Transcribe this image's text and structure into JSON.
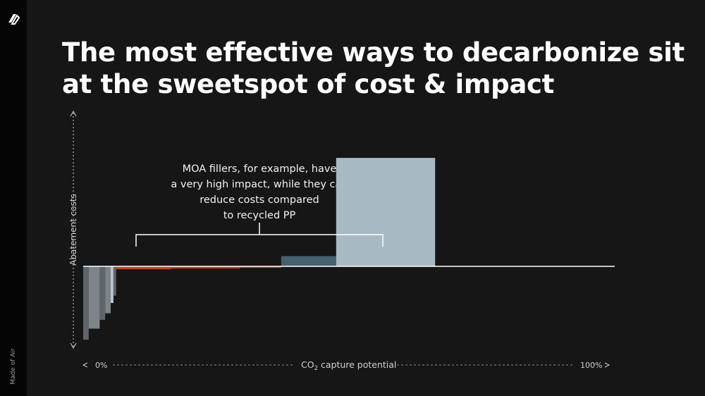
{
  "brand": {
    "name": "Made of Air"
  },
  "slide": {
    "title_lines": [
      "The most effective ways to decarbonize sit",
      "at the sweetspot of cost & impact"
    ],
    "callout_lines": [
      "MOA fillers, for example, have",
      "a very high impact, while they can",
      "reduce costs compared",
      "to recycled PP"
    ]
  },
  "colors": {
    "background": "#161616",
    "sidebar": "#050505",
    "gray_dark": "#5f6569",
    "gray_mid": "#7d8589",
    "gray_light": "#b9c6cd",
    "orange": "#c0401e",
    "steel_blue": "#45606e",
    "pale_blue": "#a7bac4"
  },
  "chart_data": {
    "type": "bar",
    "subtype": "marginal-abatement-cost-curve",
    "title": "",
    "xlabel": "CO2 capture potential",
    "xlabel_main": "CO",
    "xlabel_sub": "2",
    "xlabel_rest": " capture potential",
    "ylabel": "Abatement costs",
    "x_tick_left": "0%",
    "x_tick_right": "100%",
    "xlim": [
      0,
      100
    ],
    "ylim": [
      -100,
      150
    ],
    "grid": false,
    "bars": [
      {
        "name": "bar-1",
        "x_start": 0.0,
        "width": 2.0,
        "value": -100,
        "color": "#5f6569"
      },
      {
        "name": "bar-2",
        "x_start": 2.0,
        "width": 4.0,
        "value": -85,
        "color": "#7d8589"
      },
      {
        "name": "bar-3",
        "x_start": 6.0,
        "width": 2.0,
        "value": -73,
        "color": "#5f6569"
      },
      {
        "name": "bar-4",
        "x_start": 8.0,
        "width": 2.0,
        "value": -64,
        "color": "#7d8589"
      },
      {
        "name": "bar-5",
        "x_start": 10.0,
        "width": 1.0,
        "value": -50,
        "color": "#b9c6cd"
      },
      {
        "name": "bar-6",
        "x_start": 11.0,
        "width": 1.0,
        "value": -40,
        "color": "#5f6569"
      },
      {
        "name": "moa-filler-1",
        "x_start": 12.0,
        "width": 20.0,
        "value": -4,
        "color": "#c0401e"
      },
      {
        "name": "moa-filler-2",
        "x_start": 32.0,
        "width": 25.0,
        "value": -3,
        "color": "#c0401e"
      },
      {
        "name": "moa-filler-3",
        "x_start": 57.0,
        "width": 15.0,
        "value": -2,
        "color": "#c0401e"
      },
      {
        "name": "bar-recycled",
        "x_start": 72.0,
        "width": 20.0,
        "value": 14,
        "color": "#45606e"
      },
      {
        "name": "bar-large",
        "x_start": 92.0,
        "width": 36.0,
        "value": 148,
        "color": "#a7bac4"
      }
    ],
    "annotation": {
      "text": "MOA fillers, for example, have a very high impact, while they can reduce costs compared to recycled PP",
      "x_range": [
        12.0,
        72.0
      ]
    }
  }
}
